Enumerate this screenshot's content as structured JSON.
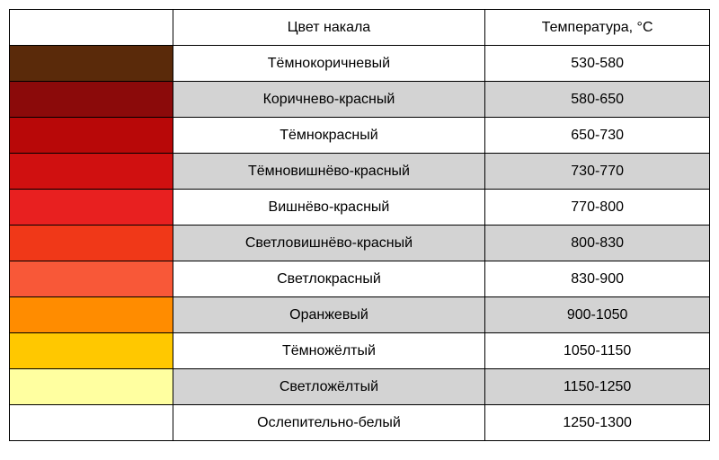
{
  "table": {
    "headers": {
      "blank": "",
      "color_name": "Цвет накала",
      "temperature": "Температура, °С"
    },
    "rows": [
      {
        "swatch": "#5a2a0a",
        "name": "Тёмнокоричневый",
        "temp": "530-580",
        "row_bg": "#ffffff"
      },
      {
        "swatch": "#8b0a0a",
        "name": "Коричнево-красный",
        "temp": "580-650",
        "row_bg": "#d3d3d3"
      },
      {
        "swatch": "#b80808",
        "name": "Тёмнокрасный",
        "temp": "650-730",
        "row_bg": "#ffffff"
      },
      {
        "swatch": "#d01010",
        "name": "Тёмновишнёво-красный",
        "temp": "730-770",
        "row_bg": "#d3d3d3"
      },
      {
        "swatch": "#e82020",
        "name": "Вишнёво-красный",
        "temp": "770-800",
        "row_bg": "#ffffff"
      },
      {
        "swatch": "#f03818",
        "name": "Светловишнёво-красный",
        "temp": "800-830",
        "row_bg": "#d3d3d3"
      },
      {
        "swatch": "#f85838",
        "name": "Светлокрасный",
        "temp": "830-900",
        "row_bg": "#ffffff"
      },
      {
        "swatch": "#ff8c00",
        "name": "Оранжевый",
        "temp": "900-1050",
        "row_bg": "#d3d3d3"
      },
      {
        "swatch": "#ffc800",
        "name": "Тёмножёлтый",
        "temp": "1050-1150",
        "row_bg": "#ffffff"
      },
      {
        "swatch": "#ffffa0",
        "name": "Светложёлтый",
        "temp": "1150-1250",
        "row_bg": "#d3d3d3"
      },
      {
        "swatch": "#ffffff",
        "name": "Ослепительно-белый",
        "temp": "1250-1300",
        "row_bg": "#ffffff"
      }
    ],
    "border_color": "#000000",
    "font_size": 16,
    "col_widths": {
      "swatch": 182,
      "name": 348,
      "temp": 250
    }
  }
}
